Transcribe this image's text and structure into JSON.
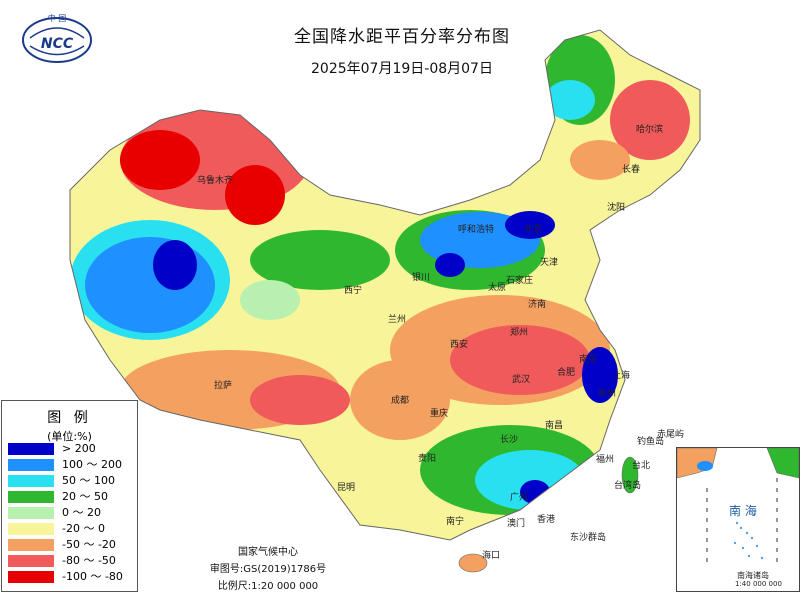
{
  "header": {
    "logo_text": "NCC",
    "logo_top": "中 国",
    "title": "全国降水距平百分率分布图",
    "date_range": "2025年07月19日-08月07日"
  },
  "legend": {
    "heading": "图 例",
    "unit": "(单位:%)",
    "items": [
      {
        "label": "> 200",
        "color": "#0000c8"
      },
      {
        "label": "100 ～ 200",
        "color": "#1e90ff"
      },
      {
        "label": "50 ～ 100",
        "color": "#28e0f0"
      },
      {
        "label": "20 ～ 50",
        "color": "#2fb82f"
      },
      {
        "label": "0 ～ 20",
        "color": "#b8f0b0"
      },
      {
        "label": "-20 ～ 0",
        "color": "#f8f49a"
      },
      {
        "label": "-50 ～ -20",
        "color": "#f4a060"
      },
      {
        "label": "-80 ～ -50",
        "color": "#f05a5a"
      },
      {
        "label": "-100 ～ -80",
        "color": "#e80000"
      }
    ]
  },
  "credits": {
    "agency": "国家气候中心",
    "review": "审图号:GS(2019)1786号",
    "scale": "比例尺:1:20 000 000"
  },
  "inset": {
    "sea": "南 海",
    "islands": "南海诸岛",
    "scale": "1:40 000 000"
  },
  "cities": [
    {
      "name": "乌鲁木齐"
    },
    {
      "name": "拉萨"
    },
    {
      "name": "西宁"
    },
    {
      "name": "兰州"
    },
    {
      "name": "银川"
    },
    {
      "name": "呼和浩特"
    },
    {
      "name": "北京"
    },
    {
      "name": "天津"
    },
    {
      "name": "石家庄"
    },
    {
      "name": "太原"
    },
    {
      "name": "济南"
    },
    {
      "name": "西安"
    },
    {
      "name": "郑州"
    },
    {
      "name": "成都"
    },
    {
      "name": "重庆"
    },
    {
      "name": "武汉"
    },
    {
      "name": "合肥"
    },
    {
      "name": "南京"
    },
    {
      "name": "上海"
    },
    {
      "name": "杭州"
    },
    {
      "name": "长沙"
    },
    {
      "name": "南昌"
    },
    {
      "name": "福州"
    },
    {
      "name": "贵阳"
    },
    {
      "name": "昆明"
    },
    {
      "name": "南宁"
    },
    {
      "name": "广州"
    },
    {
      "name": "香港"
    },
    {
      "name": "澳门"
    },
    {
      "name": "海口"
    },
    {
      "name": "台北"
    },
    {
      "name": "哈尔滨"
    },
    {
      "name": "长春"
    },
    {
      "name": "沈阳"
    },
    {
      "name": "钓鱼岛"
    },
    {
      "name": "赤尾屿"
    },
    {
      "name": "东沙群岛"
    },
    {
      "name": "台湾岛"
    }
  ]
}
